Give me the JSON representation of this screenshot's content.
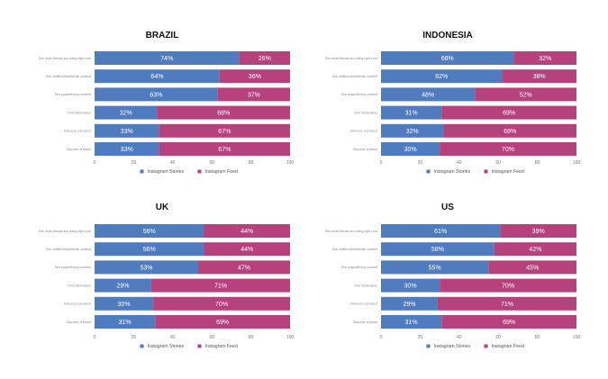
{
  "colors": {
    "stories": "#4f7cbf",
    "feed": "#b5427c"
  },
  "chart_data": [
    {
      "type": "bar",
      "orientation": "horizontal",
      "stacked": true,
      "title": "BRAZIL",
      "categories": [
        "See what friends are doing right now",
        "See unfiltered/authentic content",
        "See playful/funny content",
        "Find information",
        "Discover a product",
        "Discover a brand"
      ],
      "series": [
        {
          "name": "Instagram Stories",
          "values": [
            74,
            64,
            63,
            32,
            33,
            33
          ]
        },
        {
          "name": "Instagram Feed",
          "values": [
            26,
            36,
            37,
            68,
            67,
            67
          ]
        }
      ],
      "xticks": [
        "0",
        "20",
        "40",
        "60",
        "80",
        "100"
      ],
      "xlim": [
        0,
        100
      ],
      "value_suffix": "%",
      "legend": "bottom"
    },
    {
      "type": "bar",
      "orientation": "horizontal",
      "stacked": true,
      "title": "INDONESIA",
      "categories": [
        "See what friends are doing right now",
        "See unfiltered/authentic content",
        "See playful/funny content",
        "Find information",
        "Discover a product",
        "Discover a brand"
      ],
      "series": [
        {
          "name": "Instagram Stories",
          "values": [
            68,
            62,
            48,
            31,
            32,
            30
          ]
        },
        {
          "name": "Instagram Feed",
          "values": [
            32,
            38,
            52,
            69,
            68,
            70
          ]
        }
      ],
      "xticks": [
        "0",
        "20",
        "40",
        "60",
        "80",
        "100"
      ],
      "xlim": [
        0,
        100
      ],
      "value_suffix": "%",
      "legend": "bottom"
    },
    {
      "type": "bar",
      "orientation": "horizontal",
      "stacked": true,
      "title": "UK",
      "categories": [
        "See what friends are doing right now",
        "See unfiltered/authentic content",
        "See playful/funny content",
        "Find information",
        "Discover a product",
        "Discover a brand"
      ],
      "series": [
        {
          "name": "Instagram Stories",
          "values": [
            56,
            56,
            53,
            29,
            30,
            31
          ]
        },
        {
          "name": "Instagram Feed",
          "values": [
            44,
            44,
            47,
            71,
            70,
            69
          ]
        }
      ],
      "xticks": [
        "0",
        "20",
        "40",
        "60",
        "80",
        "100"
      ],
      "xlim": [
        0,
        100
      ],
      "value_suffix": "%",
      "legend": "bottom"
    },
    {
      "type": "bar",
      "orientation": "horizontal",
      "stacked": true,
      "title": "US",
      "categories": [
        "See what friends are doing right now",
        "See unfiltered/authentic content",
        "See playful/funny content",
        "Find information",
        "Discover a product",
        "Discover a brand"
      ],
      "series": [
        {
          "name": "Instagram Stories",
          "values": [
            61,
            58,
            55,
            30,
            29,
            31
          ]
        },
        {
          "name": "Instagram Feed",
          "values": [
            39,
            42,
            45,
            70,
            71,
            69
          ]
        }
      ],
      "xticks": [
        "0",
        "20",
        "40",
        "60",
        "80",
        "100"
      ],
      "xlim": [
        0,
        100
      ],
      "value_suffix": "%",
      "legend": "bottom"
    }
  ]
}
